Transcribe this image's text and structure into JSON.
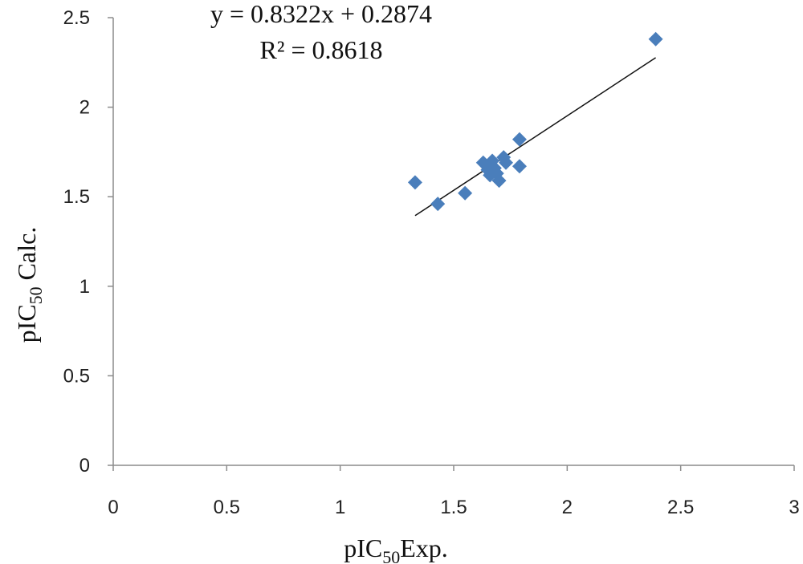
{
  "chart_data": {
    "type": "scatter",
    "title": "",
    "xlabel": {
      "pre": "pIC",
      "sub": "50",
      "post": "Exp."
    },
    "ylabel": {
      "pre": "pIC",
      "sub": "50",
      "post": " Calc."
    },
    "xlim": [
      0,
      3
    ],
    "ylim": [
      0,
      2.5
    ],
    "x_ticks": [
      0,
      0.5,
      1,
      1.5,
      2,
      2.5,
      3
    ],
    "x_tick_labels": [
      "0",
      "0.5",
      "1",
      "1.5",
      "2",
      "2.5",
      "3"
    ],
    "y_ticks": [
      0,
      0.5,
      1,
      1.5,
      2,
      2.5
    ],
    "y_tick_labels": [
      "0",
      "0.5",
      "1",
      "1.5",
      "2",
      "2.5"
    ],
    "grid": false,
    "marker_color": "#4a7ebb",
    "trendline_color": "#111111",
    "points": [
      {
        "x": 1.33,
        "y": 1.58
      },
      {
        "x": 1.43,
        "y": 1.46
      },
      {
        "x": 1.55,
        "y": 1.52
      },
      {
        "x": 1.63,
        "y": 1.69
      },
      {
        "x": 1.65,
        "y": 1.65
      },
      {
        "x": 1.66,
        "y": 1.62
      },
      {
        "x": 1.67,
        "y": 1.7
      },
      {
        "x": 1.68,
        "y": 1.66
      },
      {
        "x": 1.69,
        "y": 1.63
      },
      {
        "x": 1.7,
        "y": 1.59
      },
      {
        "x": 1.72,
        "y": 1.72
      },
      {
        "x": 1.73,
        "y": 1.69
      },
      {
        "x": 1.79,
        "y": 1.82
      },
      {
        "x": 1.79,
        "y": 1.67
      },
      {
        "x": 2.39,
        "y": 2.38
      }
    ],
    "trendline": {
      "slope": 0.8322,
      "intercept": 0.2874,
      "x_range": [
        1.33,
        2.39
      ],
      "equation": "y = 0.8322x + 0.2874",
      "r2": "R² = 0.8618"
    }
  }
}
